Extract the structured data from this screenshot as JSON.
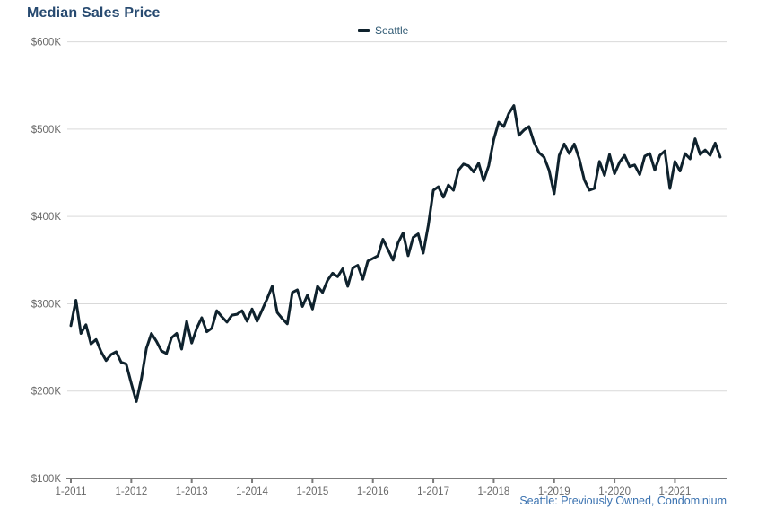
{
  "page": {
    "title": "Median Sales Price",
    "legend": {
      "label": "Seattle"
    },
    "caption": "Seattle: Previously Owned, Condominium",
    "colors": {
      "title": "#274a70",
      "line": "#0f222d",
      "legend_text": "#2e5872",
      "caption": "#3a72b0",
      "axis_label": "#6a6a6a",
      "gridline": "#d9d9d9",
      "axis_line": "#7b7b7b"
    }
  },
  "chart_data": {
    "type": "line",
    "title": "Median Sales Price",
    "subtitle": "",
    "legend_position": "top-center",
    "grid": "horizontal",
    "x_start": "1-2011",
    "x_end": "10-2021",
    "x_frequency": "monthly",
    "x_tick_labels": [
      "1-2011",
      "1-2012",
      "1-2013",
      "1-2014",
      "1-2015",
      "1-2016",
      "1-2017",
      "1-2018",
      "1-2019",
      "1-2020",
      "1-2021"
    ],
    "y_ticks": [
      {
        "label": "$100K",
        "value": 100
      },
      {
        "label": "$200K",
        "value": 200
      },
      {
        "label": "$300K",
        "value": 300
      },
      {
        "label": "$400K",
        "value": 400
      },
      {
        "label": "$500K",
        "value": 500
      },
      {
        "label": "$600K",
        "value": 600
      }
    ],
    "ylim_k": [
      100,
      600
    ],
    "unit": "USD thousands",
    "series": [
      {
        "name": "Seattle",
        "values_k": [
          275,
          304,
          266,
          276,
          254,
          259,
          245,
          235,
          242,
          245,
          233,
          231,
          209,
          188,
          214,
          249,
          266,
          257,
          246,
          243,
          261,
          266,
          248,
          280,
          255,
          272,
          284,
          268,
          272,
          292,
          285,
          279,
          287,
          288,
          292,
          280,
          294,
          280,
          293,
          306,
          320,
          290,
          283,
          277,
          313,
          316,
          297,
          310,
          294,
          320,
          313,
          327,
          335,
          331,
          340,
          320,
          341,
          344,
          328,
          349,
          352,
          355,
          374,
          362,
          350,
          370,
          381,
          355,
          376,
          380,
          358,
          390,
          430,
          434,
          422,
          436,
          430,
          453,
          460,
          458,
          451,
          461,
          441,
          458,
          488,
          508,
          503,
          518,
          527,
          493,
          499,
          503,
          485,
          473,
          468,
          453,
          426,
          470,
          483,
          472,
          483,
          466,
          442,
          430,
          432,
          463,
          447,
          471,
          449,
          462,
          470,
          457,
          459,
          448,
          469,
          472,
          453,
          470,
          475,
          432,
          463,
          452,
          472,
          466,
          489,
          471,
          476,
          470,
          484,
          468
        ]
      }
    ]
  }
}
